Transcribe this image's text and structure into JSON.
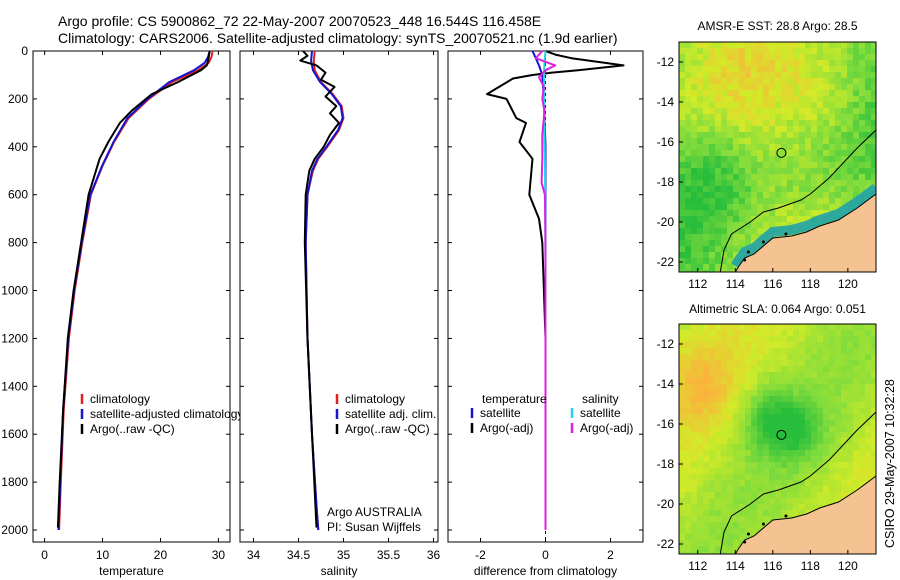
{
  "title": {
    "line1": "Argo profile: CS 5900862_72 22-May-2007 20070523_448 16.544S 116.458E",
    "line2": "Climatology: CARS2006. Satellite-adjusted climatology: synTS_20070521.nc (1.9d earlier)"
  },
  "side_label": "CSIRO 29-May-2007 10:32:28",
  "colors": {
    "climatology": "#e02020",
    "satellite": "#1515d0",
    "argo": "#000000",
    "salinity_satellite": "#18d8e8",
    "salinity_argo": "#e020e0",
    "land": "#f5c392"
  },
  "chart_data": [
    {
      "id": "temperature",
      "type": "line",
      "xlabel": "temperature",
      "ylabel": "",
      "xlim": [
        -2,
        32
      ],
      "ylim": [
        2050,
        0
      ],
      "xticks": [
        0,
        10,
        20,
        30
      ],
      "yticks": [
        0,
        200,
        400,
        600,
        800,
        1000,
        1200,
        1400,
        1600,
        1800,
        2000
      ],
      "legend": [
        "climatology",
        "satellite-adjusted climatology",
        "Argo(..raw -QC)"
      ],
      "legend_position": "lower-right",
      "series": [
        {
          "name": "climatology",
          "color_key": "climatology",
          "x": [
            29.0,
            28.8,
            28.3,
            26.5,
            22.0,
            18.0,
            14.5,
            12.0,
            10.0,
            8.0,
            6.5,
            5.2,
            4.2,
            3.3,
            2.8,
            2.5
          ],
          "y": [
            0,
            25,
            50,
            80,
            130,
            200,
            280,
            380,
            480,
            600,
            800,
            1000,
            1200,
            1500,
            1800,
            2000
          ]
        },
        {
          "name": "satellite-adjusted climatology",
          "color_key": "satellite",
          "x": [
            28.5,
            28.2,
            27.6,
            25.8,
            21.5,
            17.8,
            14.3,
            11.9,
            9.9,
            7.9,
            6.4,
            5.1,
            4.1,
            3.2,
            2.7,
            2.4
          ],
          "y": [
            0,
            25,
            50,
            80,
            130,
            200,
            280,
            380,
            480,
            600,
            800,
            1000,
            1200,
            1500,
            1800,
            2000
          ]
        },
        {
          "name": "Argo(..raw -QC)",
          "color_key": "argo",
          "x": [
            28.5,
            28.4,
            28.3,
            28.0,
            27.0,
            23.0,
            18.5,
            15.0,
            13.0,
            11.0,
            9.5,
            7.6,
            6.3,
            5.0,
            4.0,
            3.2,
            2.6,
            2.3
          ],
          "y": [
            0,
            15,
            30,
            60,
            80,
            130,
            180,
            250,
            300,
            380,
            450,
            600,
            800,
            1000,
            1200,
            1500,
            1800,
            1990
          ]
        }
      ]
    },
    {
      "id": "salinity",
      "type": "line",
      "xlabel": "salinity",
      "ylabel": "",
      "xlim": [
        33.85,
        36.05
      ],
      "ylim": [
        2050,
        0
      ],
      "xticks": [
        34,
        34.5,
        35,
        35.5,
        36
      ],
      "yticks": [
        0,
        200,
        400,
        600,
        800,
        1000,
        1200,
        1400,
        1600,
        1800,
        2000
      ],
      "legend": [
        "climatology",
        "satellite adj. clim.",
        "Argo(..raw -QC)"
      ],
      "legend_position": "lower-right",
      "annotation": [
        "Argo AUSTRALIA",
        "PI: Susan Wijffels"
      ],
      "series": [
        {
          "name": "climatology",
          "color_key": "climatology",
          "x": [
            34.68,
            34.67,
            34.68,
            34.75,
            34.88,
            34.98,
            35.0,
            34.95,
            34.82,
            34.72,
            34.66,
            34.6,
            34.58,
            34.6,
            34.65,
            34.7,
            34.72
          ],
          "y": [
            0,
            40,
            80,
            130,
            180,
            230,
            280,
            330,
            400,
            450,
            500,
            600,
            800,
            1200,
            1600,
            1900,
            2000
          ]
        },
        {
          "name": "satellite adj. clim.",
          "color_key": "satellite",
          "x": [
            34.65,
            34.64,
            34.66,
            34.74,
            34.87,
            34.97,
            34.99,
            34.94,
            34.81,
            34.71,
            34.65,
            34.6,
            34.58,
            34.6,
            34.65,
            34.7,
            34.72
          ],
          "y": [
            0,
            40,
            80,
            130,
            180,
            230,
            280,
            330,
            400,
            450,
            500,
            600,
            800,
            1200,
            1600,
            1900,
            2000
          ]
        },
        {
          "name": "Argo(..raw -QC)",
          "color_key": "argo",
          "x": [
            34.55,
            34.6,
            34.52,
            34.7,
            34.8,
            34.75,
            34.9,
            34.8,
            34.92,
            34.85,
            34.95,
            34.85,
            34.78,
            34.68,
            34.62,
            34.58,
            34.57,
            34.6,
            34.65,
            34.7
          ],
          "y": [
            0,
            20,
            40,
            60,
            90,
            120,
            150,
            190,
            230,
            260,
            300,
            350,
            400,
            450,
            500,
            600,
            800,
            1200,
            1600,
            1990
          ]
        }
      ]
    },
    {
      "id": "difference",
      "type": "line",
      "xlabel": "difference from climatology",
      "ylabel": "",
      "xlim": [
        -3.0,
        3.0
      ],
      "ylim": [
        2050,
        0
      ],
      "xticks": [
        -2,
        0,
        2
      ],
      "yticks": [
        0,
        200,
        400,
        600,
        800,
        1000,
        1200,
        1400,
        1600,
        1800,
        2000
      ],
      "legend_columns": [
        {
          "heading": "temperature",
          "items": [
            "satellite",
            "Argo(-adj)"
          ]
        },
        {
          "heading": "salinity",
          "items": [
            "satellite",
            "Argo(-adj)"
          ]
        }
      ],
      "legend_position": "lower-center",
      "series": [
        {
          "name": "temperature satellite",
          "color_key": "satellite",
          "x": [
            -0.4,
            -0.3,
            -0.2,
            -0.1,
            -0.05,
            0.0,
            0.0,
            0.0
          ],
          "y": [
            0,
            30,
            60,
            100,
            200,
            400,
            800,
            2000
          ]
        },
        {
          "name": "temperature Argo(-adj)",
          "color_key": "argo",
          "x": [
            0.0,
            0.3,
            0.8,
            2.4,
            1.0,
            0.2,
            -0.4,
            -1.0,
            -1.8,
            -1.2,
            -0.9,
            -0.6,
            -0.8,
            -0.4,
            -0.5,
            -0.2,
            -0.1,
            0.0,
            0.0
          ],
          "y": [
            0,
            15,
            30,
            60,
            80,
            90,
            100,
            115,
            180,
            200,
            280,
            300,
            380,
            450,
            600,
            700,
            800,
            1200,
            2000
          ]
        },
        {
          "name": "salinity satellite",
          "color_key": "salinity_satellite",
          "x": [
            0.0,
            -0.03,
            -0.05,
            -0.04,
            -0.04,
            -0.03,
            -0.02,
            -0.01,
            0.0,
            0.0
          ],
          "y": [
            0,
            50,
            100,
            150,
            250,
            350,
            450,
            600,
            1000,
            2000
          ]
        },
        {
          "name": "salinity Argo(-adj)",
          "color_key": "salinity_argo",
          "x": [
            -0.1,
            -0.3,
            0.3,
            0.0,
            -0.2,
            -0.05,
            -0.1,
            -0.03,
            -0.1,
            -0.1,
            -0.12,
            -0.02,
            0.0,
            0.0
          ],
          "y": [
            0,
            30,
            60,
            80,
            110,
            150,
            200,
            250,
            350,
            450,
            550,
            600,
            800,
            2000
          ]
        }
      ]
    },
    {
      "id": "sst_map",
      "type": "heatmap",
      "title": "AMSR-E SST: 28.8 Argo: 28.5",
      "xlim": [
        111,
        121.5
      ],
      "ylim": [
        -22.5,
        -11
      ],
      "xticks": [
        112,
        114,
        116,
        118,
        120
      ],
      "yticks": [
        -12,
        -14,
        -16,
        -18,
        -20,
        -22
      ],
      "marker": {
        "lon": 116.458,
        "lat": -16.544
      },
      "coast": {
        "lon": [
          121.5,
          120.5,
          119.5,
          118.5,
          117.8,
          117.0,
          116.0,
          115.5,
          115.0,
          114.5,
          114.2,
          114.0
        ],
        "lat": [
          -18.6,
          -19.3,
          -19.9,
          -20.2,
          -20.5,
          -20.7,
          -20.8,
          -21.2,
          -21.6,
          -21.8,
          -22.2,
          -22.5
        ]
      },
      "shelf": {
        "lon": [
          121.5,
          120.5,
          119.0,
          118.0,
          117.5,
          116.3,
          115.5,
          114.8,
          113.8,
          113.4,
          113.2
        ],
        "lat": [
          -15.4,
          -16.3,
          -17.8,
          -18.6,
          -18.9,
          -19.3,
          -19.5,
          -20.0,
          -20.6,
          -21.4,
          -22.5
        ]
      }
    },
    {
      "id": "sla_map",
      "type": "heatmap",
      "title": "Altimetric SLA: 0.064 Argo: 0.051",
      "xlim": [
        111,
        121.5
      ],
      "ylim": [
        -22.5,
        -11
      ],
      "xticks": [
        112,
        114,
        116,
        118,
        120
      ],
      "yticks": [
        -12,
        -14,
        -16,
        -18,
        -20,
        -22
      ],
      "marker": {
        "lon": 116.458,
        "lat": -16.544
      },
      "coast": {
        "lon": [
          121.5,
          120.5,
          119.5,
          118.5,
          117.8,
          117.0,
          116.0,
          115.5,
          115.0,
          114.5,
          114.2,
          114.0
        ],
        "lat": [
          -18.6,
          -19.3,
          -19.9,
          -20.2,
          -20.5,
          -20.7,
          -20.8,
          -21.2,
          -21.6,
          -21.8,
          -22.2,
          -22.5
        ]
      },
      "shelf": {
        "lon": [
          121.5,
          120.5,
          119.0,
          118.0,
          117.5,
          116.3,
          115.5,
          114.8,
          113.8,
          113.4,
          113.2
        ],
        "lat": [
          -15.4,
          -16.3,
          -17.8,
          -18.6,
          -18.9,
          -19.3,
          -19.5,
          -20.0,
          -20.6,
          -21.4,
          -22.5
        ]
      }
    }
  ]
}
